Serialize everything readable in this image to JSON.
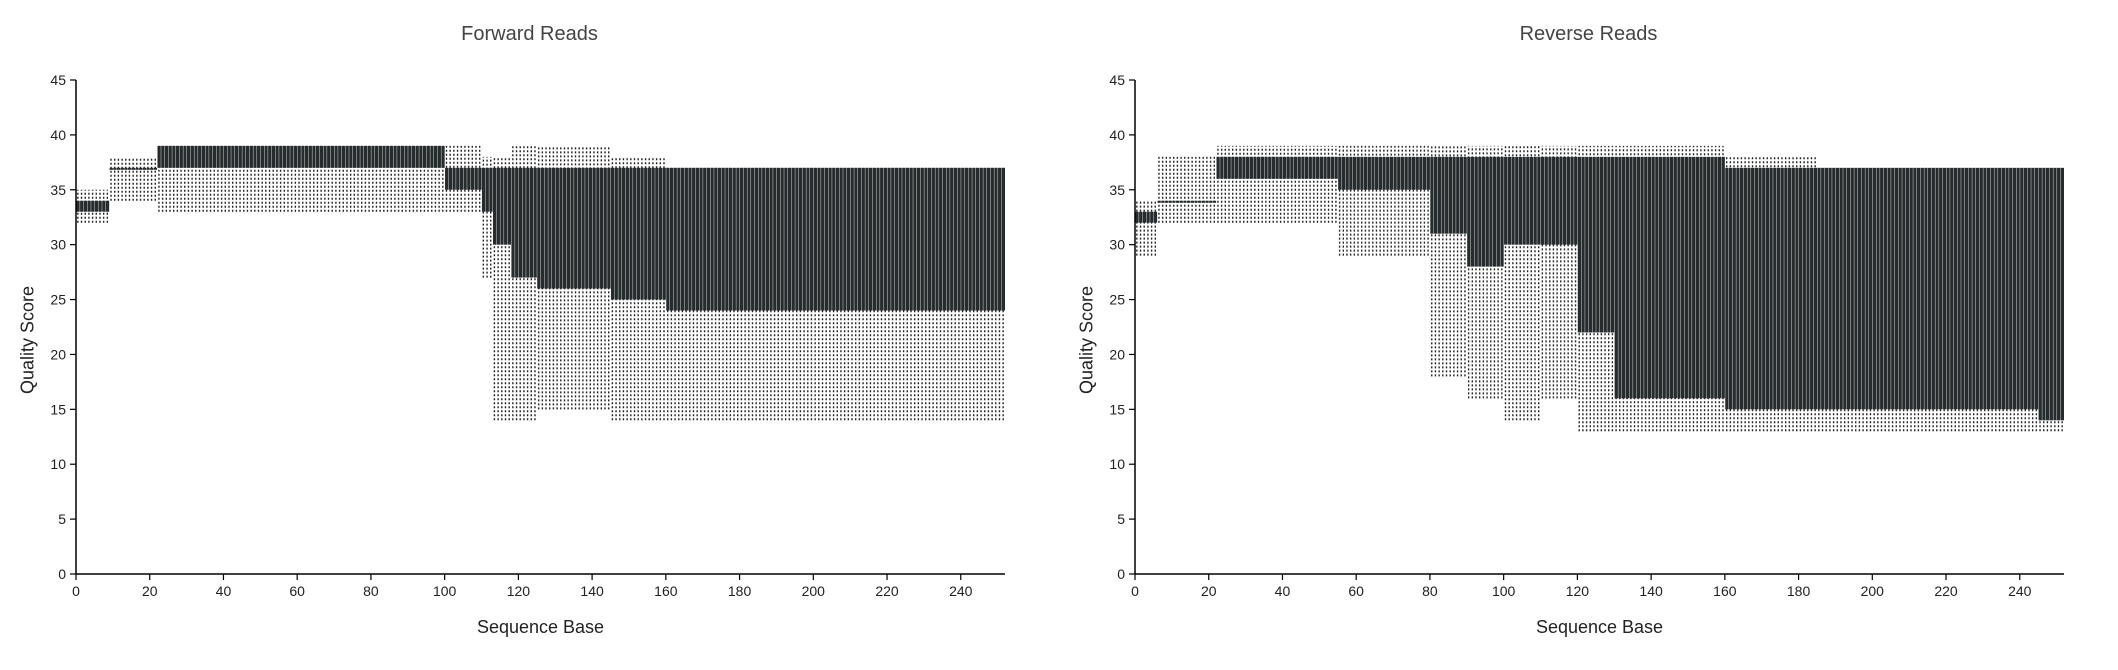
{
  "chart_data": [
    {
      "type": "box",
      "title": "Forward Reads",
      "xlabel": "Sequence Base",
      "ylabel": "Quality Score",
      "xlim": [
        0,
        252
      ],
      "ylim": [
        0,
        45
      ],
      "xticks": [
        "0",
        "20",
        "40",
        "60",
        "80",
        "100",
        "120",
        "140",
        "160",
        "180",
        "200",
        "220",
        "240"
      ],
      "yticks": [
        "0",
        "5",
        "10",
        "15",
        "20",
        "25",
        "30",
        "35",
        "40",
        "45"
      ],
      "box_color": "#262b2d",
      "whisker_color": "#222222",
      "segments": [
        {
          "start": 0,
          "end": 9,
          "whisker_low": 32,
          "q1": 33,
          "q3": 34,
          "whisker_high": 35
        },
        {
          "start": 9,
          "end": 22,
          "whisker_low": 34,
          "q1": 37,
          "q3": 37,
          "whisker_high": 38
        },
        {
          "start": 22,
          "end": 60,
          "whisker_low": 33,
          "q1": 37,
          "q3": 39,
          "whisker_high": 39
        },
        {
          "start": 60,
          "end": 100,
          "whisker_low": 33,
          "q1": 37,
          "q3": 39,
          "whisker_high": 39
        },
        {
          "start": 100,
          "end": 110,
          "whisker_low": 33,
          "q1": 35,
          "q3": 37,
          "whisker_high": 39
        },
        {
          "start": 110,
          "end": 113,
          "whisker_low": 27,
          "q1": 33,
          "q3": 37,
          "whisker_high": 38
        },
        {
          "start": 113,
          "end": 118,
          "whisker_low": 14,
          "q1": 30,
          "q3": 37,
          "whisker_high": 38
        },
        {
          "start": 118,
          "end": 125,
          "whisker_low": 14,
          "q1": 27,
          "q3": 37,
          "whisker_high": 39
        },
        {
          "start": 125,
          "end": 145,
          "whisker_low": 15,
          "q1": 26,
          "q3": 37,
          "whisker_high": 39
        },
        {
          "start": 145,
          "end": 160,
          "whisker_low": 14,
          "q1": 25,
          "q3": 37,
          "whisker_high": 38
        },
        {
          "start": 160,
          "end": 252,
          "whisker_low": 14,
          "q1": 24,
          "q3": 37,
          "whisker_high": 37
        }
      ]
    },
    {
      "type": "box",
      "title": "Reverse Reads",
      "xlabel": "Sequence Base",
      "ylabel": "Quality Score",
      "xlim": [
        0,
        252
      ],
      "ylim": [
        0,
        45
      ],
      "xticks": [
        "0",
        "20",
        "40",
        "60",
        "80",
        "100",
        "120",
        "140",
        "160",
        "180",
        "200",
        "220",
        "240"
      ],
      "yticks": [
        "0",
        "5",
        "10",
        "15",
        "20",
        "25",
        "30",
        "35",
        "40",
        "45"
      ],
      "box_color": "#262b2d",
      "whisker_color": "#222222",
      "segments": [
        {
          "start": 0,
          "end": 6,
          "whisker_low": 29,
          "q1": 32,
          "q3": 33,
          "whisker_high": 34
        },
        {
          "start": 6,
          "end": 22,
          "whisker_low": 32,
          "q1": 34,
          "q3": 34,
          "whisker_high": 38
        },
        {
          "start": 22,
          "end": 55,
          "whisker_low": 32,
          "q1": 36,
          "q3": 38,
          "whisker_high": 39
        },
        {
          "start": 55,
          "end": 80,
          "whisker_low": 29,
          "q1": 35,
          "q3": 38,
          "whisker_high": 39
        },
        {
          "start": 80,
          "end": 90,
          "whisker_low": 18,
          "q1": 31,
          "q3": 38,
          "whisker_high": 39
        },
        {
          "start": 90,
          "end": 100,
          "whisker_low": 16,
          "q1": 28,
          "q3": 38,
          "whisker_high": 39
        },
        {
          "start": 100,
          "end": 110,
          "whisker_low": 14,
          "q1": 30,
          "q3": 38,
          "whisker_high": 39
        },
        {
          "start": 110,
          "end": 120,
          "whisker_low": 16,
          "q1": 30,
          "q3": 38,
          "whisker_high": 39
        },
        {
          "start": 120,
          "end": 130,
          "whisker_low": 13,
          "q1": 22,
          "q3": 38,
          "whisker_high": 39
        },
        {
          "start": 130,
          "end": 160,
          "whisker_low": 13,
          "q1": 16,
          "q3": 38,
          "whisker_high": 39
        },
        {
          "start": 160,
          "end": 185,
          "whisker_low": 13,
          "q1": 15,
          "q3": 37,
          "whisker_high": 38
        },
        {
          "start": 185,
          "end": 245,
          "whisker_low": 13,
          "q1": 15,
          "q3": 37,
          "whisker_high": 37
        },
        {
          "start": 245,
          "end": 252,
          "whisker_low": 13,
          "q1": 14,
          "q3": 37,
          "whisker_high": 37
        }
      ]
    }
  ]
}
